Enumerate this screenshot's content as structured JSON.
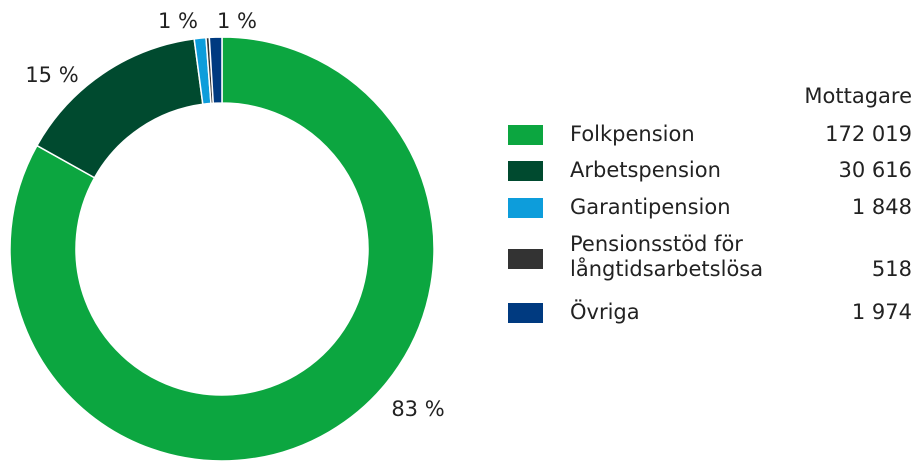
{
  "chart_data": {
    "type": "donut",
    "categories": [
      "Folkpension",
      "Arbetspension",
      "Garantipension",
      "Pensionsstöd för långtidsarbetslösa",
      "Övriga"
    ],
    "values": [
      172019,
      30616,
      1848,
      518,
      1974
    ],
    "value_labels": [
      "172 019",
      "30 616",
      "1 848",
      "518",
      "1 974"
    ],
    "percent_labels": [
      "83 %",
      "15 %",
      "1 %",
      null,
      "1 %"
    ],
    "colors": [
      "#0ca640",
      "#004a2f",
      "#0d9ddb",
      "#333333",
      "#003a80"
    ],
    "legend_title": "Mottagare"
  }
}
